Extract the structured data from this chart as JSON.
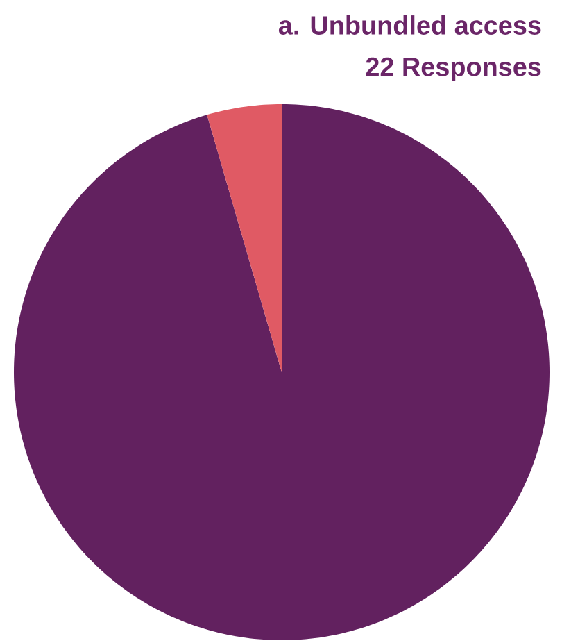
{
  "chart_data": {
    "type": "pie",
    "title": "a. Unbundled access",
    "subtitle": "22 Responses",
    "categories": [
      null,
      null
    ],
    "values": [
      95.5,
      4.5
    ],
    "colors": [
      "#62215f",
      "#e05a64"
    ]
  }
}
